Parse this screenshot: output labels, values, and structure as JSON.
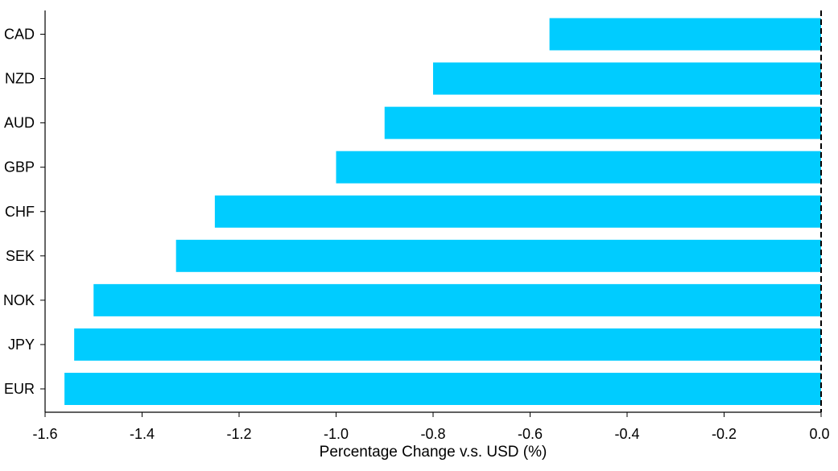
{
  "chart_data": {
    "type": "bar",
    "orientation": "horizontal",
    "categories": [
      "CAD",
      "NZD",
      "AUD",
      "GBP",
      "CHF",
      "SEK",
      "NOK",
      "JPY",
      "EUR"
    ],
    "values": [
      -0.56,
      -0.8,
      -0.9,
      -1.0,
      -1.25,
      -1.33,
      -1.5,
      -1.54,
      -1.56
    ],
    "xlabel": "Percentage Change v.s. USD (%)",
    "ylabel": "",
    "title": "",
    "xlim": [
      -1.6,
      0.0
    ],
    "xticks": [
      -1.6,
      -1.4,
      -1.2,
      -1.0,
      -0.8,
      -0.6,
      -0.4,
      -0.2,
      0.0
    ],
    "xtick_labels": [
      "-1.6",
      "-1.4",
      "-1.2",
      "-1.0",
      "-0.8",
      "-0.6",
      "-0.4",
      "-0.2",
      "0.0"
    ],
    "bar_color": "#00CCFF",
    "zero_line_style": "dashed",
    "grid": false,
    "legend": "none"
  }
}
